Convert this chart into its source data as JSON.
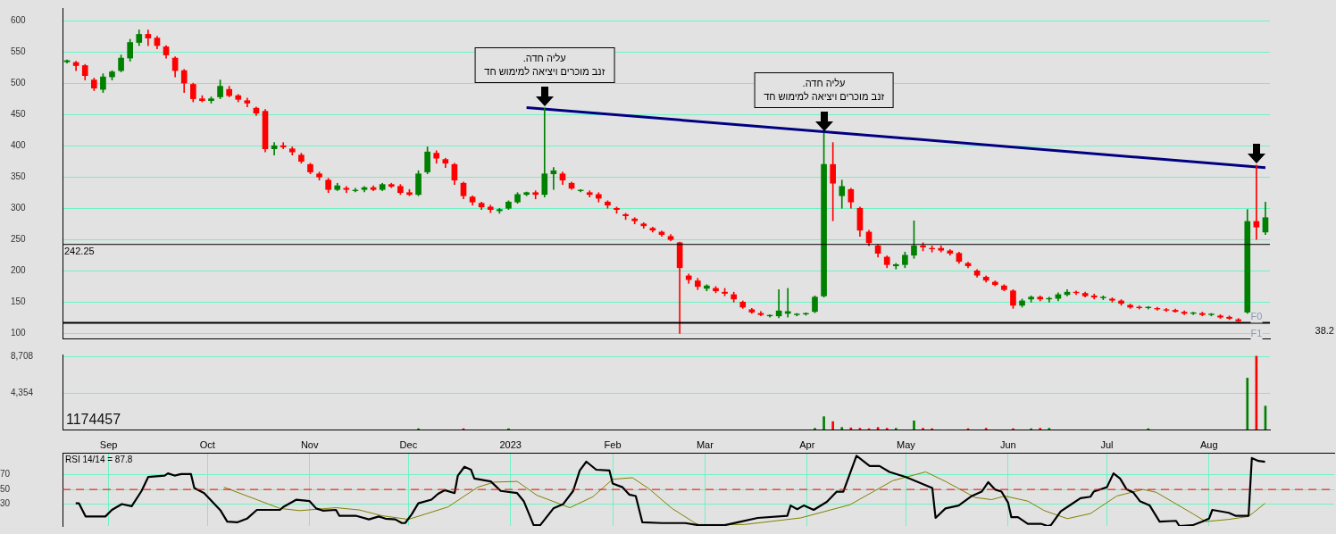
{
  "chart_data": [
    {
      "type": "candlestick",
      "categories": [
        null,
        null,
        null,
        null,
        null,
        null,
        null,
        null,
        null,
        null,
        null,
        null,
        null,
        null,
        null,
        null,
        null,
        null,
        null,
        null,
        null,
        null,
        null,
        null,
        null,
        null,
        null,
        null,
        null,
        null,
        null,
        null,
        null,
        null,
        null,
        null,
        null,
        null,
        null,
        null,
        null,
        null,
        null,
        null,
        null,
        null,
        null,
        null,
        null,
        null,
        null,
        null,
        null,
        null,
        null,
        null,
        null,
        null,
        null,
        null,
        null,
        null,
        null,
        null,
        null,
        null,
        null,
        null,
        null,
        null,
        null,
        null,
        null,
        null,
        null,
        null,
        null,
        null,
        null,
        null,
        null,
        null,
        null,
        null,
        null,
        null,
        null,
        null,
        null,
        null,
        null,
        null,
        null,
        null,
        null,
        null,
        null,
        null,
        null,
        null,
        null,
        null,
        null,
        null,
        null,
        null,
        null,
        null,
        null,
        null,
        null,
        null,
        null,
        null,
        null,
        null,
        null,
        null,
        null,
        null,
        null,
        null,
        null,
        null,
        null,
        null,
        null,
        null,
        null,
        null,
        null,
        null,
        null,
        null
      ],
      "ohlc": [
        [
          534,
          537,
          532,
          536
        ],
        [
          533,
          535,
          520,
          528
        ],
        [
          528,
          530,
          505,
          512
        ],
        [
          505,
          508,
          488,
          492
        ],
        [
          490,
          515,
          485,
          510
        ],
        [
          510,
          520,
          505,
          518
        ],
        [
          520,
          545,
          518,
          540
        ],
        [
          540,
          570,
          535,
          565
        ],
        [
          565,
          585,
          560,
          578
        ],
        [
          578,
          585,
          560,
          572
        ],
        [
          572,
          575,
          555,
          560
        ],
        [
          558,
          560,
          540,
          545
        ],
        [
          540,
          542,
          510,
          520
        ],
        [
          520,
          522,
          485,
          500
        ],
        [
          498,
          500,
          470,
          475
        ],
        [
          475,
          480,
          470,
          472
        ],
        [
          472,
          478,
          468,
          475
        ],
        [
          478,
          505,
          475,
          495
        ],
        [
          490,
          495,
          478,
          480
        ],
        [
          480,
          482,
          470,
          474
        ],
        [
          472,
          476,
          462,
          468
        ],
        [
          460,
          462,
          448,
          452
        ],
        [
          455,
          458,
          390,
          395
        ],
        [
          395,
          405,
          385,
          400
        ],
        [
          400,
          405,
          395,
          398
        ],
        [
          395,
          398,
          385,
          390
        ],
        [
          385,
          388,
          372,
          375
        ],
        [
          370,
          372,
          355,
          358
        ],
        [
          355,
          358,
          345,
          350
        ],
        [
          345,
          348,
          325,
          330
        ],
        [
          330,
          340,
          328,
          336
        ],
        [
          332,
          335,
          325,
          330
        ],
        [
          328,
          332,
          326,
          329
        ],
        [
          330,
          335,
          326,
          333
        ],
        [
          333,
          336,
          328,
          330
        ],
        [
          330,
          340,
          328,
          338
        ],
        [
          338,
          340,
          333,
          335
        ],
        [
          335,
          338,
          322,
          325
        ],
        [
          325,
          330,
          320,
          322
        ],
        [
          322,
          360,
          320,
          355
        ],
        [
          358,
          398,
          355,
          390
        ],
        [
          388,
          392,
          372,
          380
        ],
        [
          378,
          380,
          365,
          372
        ],
        [
          370,
          372,
          338,
          345
        ],
        [
          340,
          342,
          315,
          320
        ],
        [
          318,
          320,
          305,
          310
        ],
        [
          308,
          310,
          298,
          302
        ],
        [
          302,
          305,
          293,
          298
        ],
        [
          296,
          300,
          292,
          298
        ],
        [
          300,
          312,
          298,
          310
        ],
        [
          310,
          325,
          308,
          322
        ],
        [
          322,
          326,
          320,
          325
        ],
        [
          325,
          328,
          315,
          322
        ],
        [
          322,
          460,
          318,
          355
        ],
        [
          355,
          365,
          330,
          360
        ],
        [
          355,
          358,
          338,
          345
        ],
        [
          340,
          342,
          330,
          332
        ],
        [
          328,
          330,
          326,
          329
        ],
        [
          325,
          328,
          318,
          322
        ],
        [
          322,
          325,
          310,
          316
        ],
        [
          310,
          312,
          300,
          305
        ],
        [
          300,
          302,
          292,
          298
        ],
        [
          290,
          292,
          282,
          288
        ],
        [
          283,
          285,
          275,
          280
        ],
        [
          275,
          277,
          268,
          272
        ],
        [
          268,
          270,
          262,
          265
        ],
        [
          262,
          264,
          255,
          258
        ],
        [
          255,
          258,
          248,
          250
        ],
        [
          245,
          246,
          100,
          205
        ],
        [
          192,
          195,
          180,
          186
        ],
        [
          184,
          188,
          170,
          175
        ],
        [
          172,
          178,
          168,
          176
        ],
        [
          172,
          175,
          165,
          168
        ],
        [
          166,
          172,
          160,
          164
        ],
        [
          162,
          166,
          150,
          155
        ],
        [
          150,
          152,
          140,
          142
        ],
        [
          138,
          140,
          132,
          134
        ],
        [
          132,
          135,
          128,
          130
        ],
        [
          128,
          130,
          126,
          129
        ],
        [
          128,
          170,
          125,
          136
        ],
        [
          132,
          172,
          126,
          135
        ],
        [
          130,
          132,
          128,
          131
        ],
        [
          131,
          133,
          129,
          132
        ],
        [
          135,
          160,
          133,
          158
        ],
        [
          160,
          420,
          158,
          370
        ],
        [
          370,
          405,
          280,
          340
        ],
        [
          320,
          345,
          300,
          335
        ],
        [
          330,
          332,
          300,
          310
        ],
        [
          300,
          302,
          255,
          265
        ],
        [
          262,
          265,
          240,
          245
        ],
        [
          240,
          242,
          222,
          228
        ],
        [
          222,
          224,
          205,
          210
        ],
        [
          208,
          212,
          203,
          210
        ],
        [
          210,
          230,
          205,
          225
        ],
        [
          225,
          280,
          220,
          240
        ],
        [
          240,
          245,
          232,
          238
        ],
        [
          236,
          240,
          230,
          235
        ],
        [
          236,
          240,
          230,
          233
        ],
        [
          232,
          234,
          225,
          228
        ],
        [
          228,
          230,
          212,
          215
        ],
        [
          212,
          214,
          205,
          208
        ],
        [
          200,
          202,
          190,
          193
        ],
        [
          190,
          192,
          182,
          185
        ],
        [
          182,
          184,
          176,
          178
        ],
        [
          176,
          178,
          168,
          170
        ],
        [
          168,
          170,
          140,
          145
        ],
        [
          145,
          155,
          142,
          152
        ],
        [
          155,
          160,
          150,
          158
        ],
        [
          158,
          160,
          152,
          155
        ],
        [
          155,
          158,
          150,
          156
        ],
        [
          156,
          165,
          152,
          162
        ],
        [
          162,
          170,
          160,
          166
        ],
        [
          166,
          168,
          162,
          165
        ],
        [
          164,
          166,
          158,
          160
        ],
        [
          160,
          163,
          155,
          158
        ],
        [
          157,
          160,
          154,
          158
        ],
        [
          155,
          157,
          150,
          153
        ],
        [
          152,
          154,
          145,
          148
        ],
        [
          145,
          147,
          140,
          142
        ],
        [
          142,
          144,
          139,
          141
        ],
        [
          141,
          143,
          139,
          142
        ],
        [
          140,
          142,
          137,
          139
        ],
        [
          138,
          140,
          135,
          137
        ],
        [
          137,
          139,
          134,
          135
        ],
        [
          134,
          136,
          130,
          132
        ],
        [
          132,
          134,
          130,
          133
        ],
        [
          132,
          134,
          128,
          130
        ],
        [
          130,
          132,
          128,
          131
        ],
        [
          128,
          130,
          124,
          126
        ],
        [
          126,
          128,
          122,
          124
        ],
        [
          122,
          124,
          119,
          120
        ],
        [
          134,
          298,
          132,
          279
        ],
        [
          279,
          369,
          250,
          270
        ],
        [
          262,
          310,
          258,
          285
        ]
      ],
      "colors": [
        "#008000",
        "#ff0000",
        "#ff0000",
        "#ff0000",
        "#008000",
        "#008000",
        "#008000",
        "#008000",
        "#008000",
        "#ff0000",
        "#ff0000",
        "#ff0000",
        "#ff0000",
        "#ff0000",
        "#ff0000",
        "#ff0000",
        "#008000",
        "#008000",
        "#ff0000",
        "#ff0000",
        "#ff0000",
        "#ff0000",
        "#ff0000",
        "#008000",
        "#ff0000",
        "#ff0000",
        "#ff0000",
        "#ff0000",
        "#ff0000",
        "#ff0000",
        "#008000",
        "#ff0000",
        "#008000",
        "#008000",
        "#ff0000",
        "#008000",
        "#ff0000",
        "#ff0000",
        "#ff0000",
        "#008000",
        "#008000",
        "#ff0000",
        "#ff0000",
        "#ff0000",
        "#ff0000",
        "#ff0000",
        "#ff0000",
        "#ff0000",
        "#008000",
        "#008000",
        "#008000",
        "#008000",
        "#ff0000",
        "#008000",
        "#008000",
        "#ff0000",
        "#ff0000",
        "#008000",
        "#ff0000",
        "#ff0000",
        "#ff0000",
        "#ff0000",
        "#ff0000",
        "#ff0000",
        "#ff0000",
        "#ff0000",
        "#ff0000",
        "#ff0000",
        "#ff0000",
        "#ff0000",
        "#ff0000",
        "#008000",
        "#ff0000",
        "#ff0000",
        "#ff0000",
        "#ff0000",
        "#ff0000",
        "#ff0000",
        "#008000",
        "#008000",
        "#008000",
        "#008000",
        "#008000",
        "#008000",
        "#008000",
        "#ff0000",
        "#008000",
        "#ff0000",
        "#ff0000",
        "#ff0000",
        "#ff0000",
        "#ff0000",
        "#008000",
        "#008000",
        "#008000",
        "#ff0000",
        "#ff0000",
        "#ff0000",
        "#ff0000",
        "#ff0000",
        "#ff0000",
        "#ff0000",
        "#ff0000",
        "#ff0000",
        "#ff0000",
        "#ff0000",
        "#008000",
        "#008000",
        "#ff0000",
        "#008000",
        "#008000",
        "#008000",
        "#ff0000",
        "#ff0000",
        "#ff0000",
        "#008000",
        "#ff0000",
        "#ff0000",
        "#ff0000",
        "#ff0000",
        "#008000",
        "#ff0000",
        "#ff0000",
        "#ff0000",
        "#ff0000",
        "#008000",
        "#ff0000",
        "#008000",
        "#ff0000",
        "#ff0000",
        "#ff0000",
        "#008000",
        "#ff0000",
        "#008000"
      ],
      "series": [
        {
          "type": "line",
          "color": "#000080",
          "values": [
            null,
            null,
            null,
            null,
            null,
            null,
            null,
            null,
            null,
            null,
            null,
            null,
            null,
            null,
            null,
            null,
            null,
            null,
            null,
            null,
            null,
            null,
            null,
            null,
            null,
            null,
            null,
            null,
            null,
            null,
            null,
            null,
            null,
            null,
            null,
            null,
            null,
            null,
            null,
            null,
            null,
            null,
            null,
            null,
            null,
            null,
            null,
            null,
            null,
            null,
            null,
            461,
            null,
            null,
            null,
            null,
            null,
            null,
            null,
            null,
            null,
            null,
            null,
            null,
            null,
            null,
            null,
            null,
            null,
            null,
            null,
            null,
            null,
            null,
            null,
            null,
            null,
            null,
            null,
            null,
            null,
            null,
            null,
            null,
            null,
            null,
            null,
            null,
            null,
            null,
            null,
            null,
            null,
            null,
            null,
            null,
            null,
            null,
            null,
            null,
            null,
            null,
            null,
            null,
            null,
            null,
            null,
            null,
            null,
            null,
            null,
            null,
            null,
            null,
            null,
            null,
            null,
            null,
            null,
            null,
            null,
            null,
            null,
            null,
            null,
            null,
            null,
            null,
            null,
            null,
            null,
            null,
            null,
            365
          ]
        }
      ],
      "ylim": [
        92,
        620
      ],
      "yticks": [
        100,
        150,
        200,
        250,
        300,
        350,
        400,
        450,
        500,
        550,
        600
      ],
      "tick_labels": "y",
      "grid": "y",
      "ref_lines": [
        {
          "axis": "y",
          "value": 242.25,
          "label": "242.25",
          "color": "#000000"
        },
        {
          "axis": "y",
          "value": 117,
          "color": "#000000"
        }
      ],
      "annotations": [
        "עליה חדה.\nזנב מוכרים ויציאה למימוש חד",
        "עליה חדה.\nזנב מוכרים ויציאה למימוש חד",
        "38.2",
        {
          "text": "F0",
          "y": 127
        },
        {
          "text": "F1",
          "y": 100
        }
      ]
    },
    {
      "type": "bar",
      "categories": [
        null,
        null,
        null,
        null,
        null,
        null,
        null,
        null,
        null,
        null,
        null,
        null,
        null,
        null,
        null,
        null,
        null,
        null,
        null,
        null,
        null,
        null,
        null,
        null,
        null,
        null,
        null,
        null,
        null,
        null,
        null,
        null,
        null,
        null,
        null,
        null,
        null,
        null,
        null,
        null,
        null,
        null,
        null,
        null,
        null,
        null,
        null,
        null,
        null,
        null,
        null,
        null,
        null,
        null,
        null,
        null,
        null,
        null,
        null,
        null,
        null,
        null,
        null,
        null,
        null,
        null,
        null,
        null,
        null,
        null,
        null,
        null,
        null,
        null,
        null,
        null,
        null,
        null,
        null,
        null,
        null,
        null,
        null,
        null,
        null,
        null,
        null,
        null,
        null,
        null,
        null,
        null,
        null,
        null,
        null,
        null,
        null,
        null,
        null,
        null,
        null,
        null,
        null,
        null,
        null,
        null,
        null,
        null,
        null,
        null,
        null,
        null,
        null,
        null,
        null,
        null,
        null,
        null,
        null,
        null,
        null,
        null,
        null,
        null,
        null,
        null,
        null,
        null,
        null,
        null,
        null,
        null,
        null,
        null
      ],
      "values": [
        null,
        null,
        null,
        null,
        null,
        null,
        null,
        null,
        null,
        null,
        null,
        null,
        null,
        null,
        null,
        null,
        null,
        null,
        null,
        null,
        null,
        null,
        null,
        null,
        null,
        null,
        null,
        null,
        null,
        null,
        null,
        null,
        null,
        null,
        null,
        null,
        null,
        null,
        null,
        100,
        null,
        null,
        null,
        null,
        100,
        null,
        null,
        null,
        null,
        100,
        null,
        null,
        null,
        null,
        null,
        null,
        null,
        null,
        null,
        null,
        null,
        null,
        null,
        null,
        null,
        null,
        null,
        null,
        null,
        null,
        null,
        null,
        null,
        null,
        null,
        null,
        null,
        null,
        null,
        null,
        null,
        null,
        null,
        150,
        1540,
        950,
        250,
        200,
        150,
        100,
        250,
        150,
        150,
        null,
        1040,
        150,
        100,
        null,
        null,
        null,
        100,
        null,
        150,
        null,
        null,
        100,
        null,
        100,
        150,
        150,
        null,
        null,
        null,
        null,
        null,
        null,
        null,
        null,
        null,
        null,
        100,
        null,
        null,
        null,
        null,
        null,
        null,
        null,
        null,
        null,
        null,
        6170,
        8800,
        2810
      ],
      "colors": [
        "#008000",
        "#ff0000",
        "#ff0000",
        "#ff0000",
        "#008000",
        "#008000",
        "#008000",
        "#008000",
        "#008000",
        "#ff0000",
        "#ff0000",
        "#ff0000",
        "#ff0000",
        "#ff0000",
        "#ff0000",
        "#ff0000",
        "#008000",
        "#008000",
        "#ff0000",
        "#ff0000",
        "#ff0000",
        "#ff0000",
        "#ff0000",
        "#008000",
        "#ff0000",
        "#ff0000",
        "#ff0000",
        "#ff0000",
        "#ff0000",
        "#ff0000",
        "#008000",
        "#ff0000",
        "#008000",
        "#008000",
        "#ff0000",
        "#008000",
        "#ff0000",
        "#ff0000",
        "#ff0000",
        "#008000",
        "#008000",
        "#ff0000",
        "#ff0000",
        "#ff0000",
        "#ff0000",
        "#ff0000",
        "#ff0000",
        "#ff0000",
        "#008000",
        "#008000",
        "#008000",
        "#008000",
        "#ff0000",
        "#008000",
        "#008000",
        "#ff0000",
        "#ff0000",
        "#008000",
        "#ff0000",
        "#ff0000",
        "#ff0000",
        "#ff0000",
        "#ff0000",
        "#ff0000",
        "#ff0000",
        "#ff0000",
        "#ff0000",
        "#ff0000",
        "#ff0000",
        "#ff0000",
        "#ff0000",
        "#008000",
        "#ff0000",
        "#ff0000",
        "#ff0000",
        "#ff0000",
        "#ff0000",
        "#ff0000",
        "#008000",
        "#008000",
        "#008000",
        "#008000",
        "#008000",
        "#008000",
        "#008000",
        "#ff0000",
        "#008000",
        "#ff0000",
        "#ff0000",
        "#ff0000",
        "#ff0000",
        "#ff0000",
        "#008000",
        "#008000",
        "#008000",
        "#ff0000",
        "#ff0000",
        "#ff0000",
        "#ff0000",
        "#ff0000",
        "#ff0000",
        "#ff0000",
        "#ff0000",
        "#ff0000",
        "#ff0000",
        "#ff0000",
        "#008000",
        "#008000",
        "#ff0000",
        "#008000",
        "#008000",
        "#008000",
        "#ff0000",
        "#ff0000",
        "#ff0000",
        "#008000",
        "#ff0000",
        "#ff0000",
        "#ff0000",
        "#ff0000",
        "#008000",
        "#ff0000",
        "#ff0000",
        "#ff0000",
        "#ff0000",
        "#008000",
        "#ff0000",
        "#008000",
        "#ff0000",
        "#ff0000",
        "#ff0000",
        "#008000",
        "#ff0000",
        "#008000"
      ],
      "ylim": [
        0,
        9000
      ],
      "yticks": [
        {
          "value": 4354,
          "label": "4,354"
        },
        {
          "value": 8708,
          "label": "8,708"
        }
      ],
      "tick_labels": "y",
      "grid": "y",
      "annotations": [
        "1174457"
      ]
    },
    {
      "type": "line",
      "title": "RSI 14/14 = 87.8",
      "series": [
        {
          "color": "#000000",
          "x": [
            "2022-08-22",
            "2022-08-23",
            "2022-08-25",
            "2022-08-31",
            "2022-09-02",
            "2022-09-05",
            "2022-09-08",
            "2022-09-11",
            "2022-09-13",
            "2022-09-18",
            "2022-09-19",
            "2022-09-21",
            "2022-09-23",
            "2022-09-26",
            "2022-09-27",
            "2022-09-30",
            "2022-10-05",
            "2022-10-07",
            "2022-10-10",
            "2022-10-13",
            "2022-10-16",
            "2022-10-23",
            "2022-10-24",
            "2022-10-28",
            "2022-11-01",
            "2022-11-03",
            "2022-11-05",
            "2022-11-09",
            "2022-11-10",
            "2022-11-15",
            "2022-11-19",
            "2022-11-22",
            "2022-11-24",
            "2022-11-27",
            "2022-11-29",
            "2022-11-30",
            "2022-12-02",
            "2022-12-04",
            "2022-12-08",
            "2022-12-10",
            "2022-12-12",
            "2022-12-15",
            "2022-12-16",
            "2022-12-18",
            "2022-12-20",
            "2022-12-21",
            "2022-12-26",
            "2022-12-29",
            "2023-01-03",
            "2023-01-05",
            "2023-01-08",
            "2023-01-10",
            "2023-01-14",
            "2023-01-17",
            "2023-01-20",
            "2023-01-22",
            "2023-01-24",
            "2023-01-27",
            "2023-01-31",
            "2023-02-01",
            "2023-02-04",
            "2023-02-06",
            "2023-02-08",
            "2023-02-10",
            "2023-02-16",
            "2023-02-23",
            "2023-02-27",
            "2023-03-07",
            "2023-03-11",
            "2023-03-17",
            "2023-03-26",
            "2023-03-27",
            "2023-03-29",
            "2023-03-31",
            "2023-04-03",
            "2023-04-07",
            "2023-04-10",
            "2023-04-12",
            "2023-04-16",
            "2023-04-20",
            "2023-04-23",
            "2023-04-26",
            "2023-05-01",
            "2023-05-09",
            "2023-05-10",
            "2023-05-13",
            "2023-05-17",
            "2023-05-21",
            "2023-05-24",
            "2023-05-26",
            "2023-05-28",
            "2023-05-30",
            "2023-06-01",
            "2023-06-02",
            "2023-06-04",
            "2023-06-07",
            "2023-06-11",
            "2023-06-13",
            "2023-06-14",
            "2023-06-17",
            "2023-06-20",
            "2023-06-23",
            "2023-06-26",
            "2023-06-27",
            "2023-07-01",
            "2023-07-03",
            "2023-07-05",
            "2023-07-07",
            "2023-07-09",
            "2023-07-11",
            "2023-07-14",
            "2023-07-17",
            "2023-07-22",
            "2023-07-23",
            "2023-07-27",
            "2023-07-30",
            "2023-08-01",
            "2023-08-02",
            "2023-08-07",
            "2023-08-09",
            "2023-08-13",
            "2023-08-14",
            "2023-08-16",
            "2023-08-18"
          ],
          "values": [
            31,
            31,
            13,
            13,
            22,
            30,
            27,
            48,
            67,
            69,
            72,
            69,
            71,
            71,
            52,
            45,
            21,
            6,
            5,
            10,
            22,
            22,
            26,
            36,
            34,
            24,
            21,
            22,
            14,
            14,
            9,
            13,
            10,
            9,
            4,
            4,
            16,
            31,
            36,
            44,
            49,
            45,
            69,
            81,
            77,
            65,
            61,
            48,
            45,
            34,
            1,
            1,
            24,
            30,
            48,
            76,
            88,
            77,
            76,
            58,
            53,
            43,
            41,
            5,
            4,
            4,
            1,
            1,
            5,
            11,
            14,
            28,
            23,
            28,
            22,
            33,
            47,
            47,
            96,
            82,
            82,
            74,
            67,
            52,
            11,
            24,
            28,
            41,
            47,
            60,
            50,
            47,
            32,
            12,
            12,
            3,
            3,
            0,
            1,
            20,
            29,
            38,
            40,
            47,
            53,
            72,
            65,
            50,
            46,
            34,
            28,
            6,
            7,
            0,
            1,
            6,
            10,
            22,
            18,
            14,
            14,
            93,
            89,
            87.8
          ]
        },
        {
          "color": "#808000",
          "x": [
            "2022-10-06",
            "2022-10-23",
            "2022-10-29",
            "2022-11-09",
            "2022-11-16",
            "2022-11-23",
            "2022-12-01",
            "2022-12-13",
            "2022-12-22",
            "2022-12-27",
            "2023-01-03",
            "2023-01-09",
            "2023-01-19",
            "2023-01-26",
            "2023-02-01",
            "2023-02-07",
            "2023-02-12",
            "2023-02-19",
            "2023-02-26",
            "2023-02-27",
            "2023-03-13",
            "2023-03-30",
            "2023-04-14",
            "2023-04-27",
            "2023-05-07",
            "2023-05-13",
            "2023-05-22",
            "2023-05-27",
            "2023-05-31",
            "2023-06-07",
            "2023-06-12",
            "2023-06-19",
            "2023-06-26",
            "2023-07-04",
            "2023-07-12",
            "2023-07-16",
            "2023-07-27",
            "2023-07-31",
            "2023-08-07",
            "2023-08-13",
            "2023-08-18"
          ],
          "values": [
            53,
            24,
            21,
            25,
            22,
            14,
            9,
            26,
            53,
            60,
            61,
            42,
            25,
            40,
            64,
            66,
            51,
            24,
            4,
            2,
            2,
            11,
            29,
            62,
            74,
            61,
            39,
            36,
            41,
            34,
            21,
            10,
            17,
            41,
            50,
            46,
            17,
            6,
            9,
            13,
            31
          ]
        }
      ],
      "xlim": [
        "2022-08-18",
        "2023-09-08"
      ],
      "xticks": [
        {
          "value": "2022-09-01",
          "label": "Sep"
        },
        {
          "value": "2022-10-01",
          "label": "Oct"
        },
        {
          "value": "2022-11-01",
          "label": "Nov"
        },
        {
          "value": "2022-12-01",
          "label": "Dec"
        },
        {
          "value": "2023-01-01",
          "label": "2023"
        },
        {
          "value": "2023-02-01",
          "label": "Feb"
        },
        {
          "value": "2023-03-01",
          "label": "Mar"
        },
        {
          "value": "2023-04-01",
          "label": "Apr"
        },
        {
          "value": "2023-05-01",
          "label": "May"
        },
        {
          "value": "2023-06-01",
          "label": "Jun"
        },
        {
          "value": "2023-07-01",
          "label": "Jul"
        },
        {
          "value": "2023-08-01",
          "label": "Aug"
        }
      ],
      "ylim": [
        0,
        100
      ],
      "yticks": [
        30,
        50,
        70
      ],
      "grid": true,
      "marker": "none",
      "ref_lines": [
        {
          "axis": "y",
          "value": 50,
          "color": "#ff0000",
          "line_style": "dashed"
        }
      ]
    }
  ]
}
